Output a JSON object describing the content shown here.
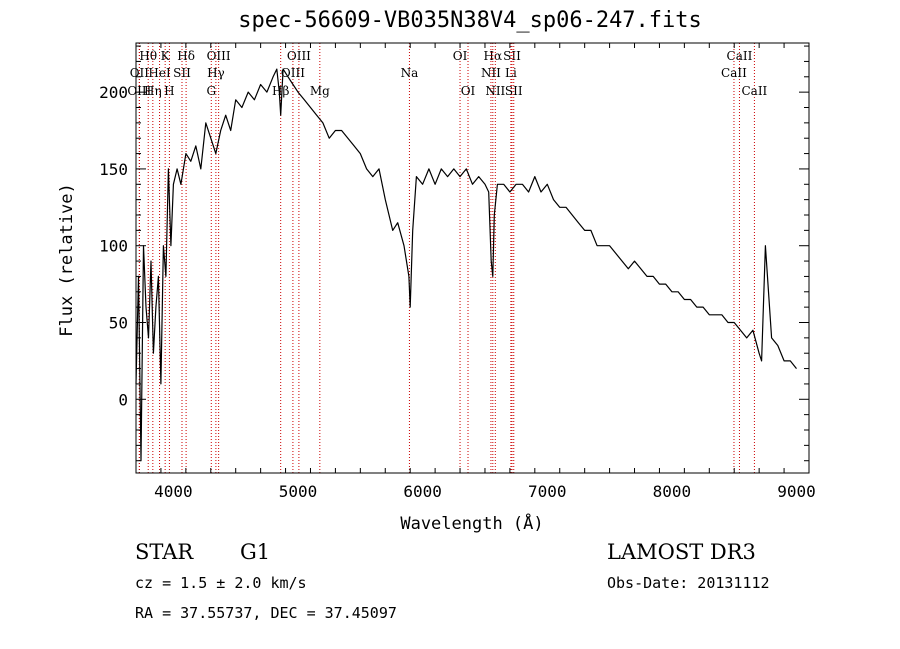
{
  "chart_data": {
    "type": "line",
    "title": "spec-56609-VB035N38V4_sp06-247.fits",
    "xlabel": "Wavelength (Å)",
    "ylabel": "Flux (relative)",
    "xlim": [
      3700,
      9100
    ],
    "ylim": [
      -48,
      232
    ],
    "x_ticks": [
      4000,
      5000,
      6000,
      7000,
      8000,
      9000
    ],
    "y_ticks": [
      0,
      50,
      100,
      150,
      200
    ],
    "grid": false,
    "line_color": "#000000",
    "marker_color": "#cc0000",
    "series": [
      {
        "name": "flux",
        "x": [
          3700,
          3720,
          3740,
          3760,
          3780,
          3800,
          3820,
          3840,
          3860,
          3880,
          3900,
          3920,
          3940,
          3960,
          3980,
          4000,
          4030,
          4060,
          4100,
          4140,
          4180,
          4220,
          4260,
          4300,
          4340,
          4380,
          4420,
          4460,
          4500,
          4550,
          4600,
          4650,
          4700,
          4750,
          4800,
          4830,
          4850,
          4861,
          4880,
          4920,
          4960,
          5000,
          5050,
          5100,
          5150,
          5200,
          5250,
          5300,
          5350,
          5400,
          5450,
          5500,
          5550,
          5600,
          5650,
          5700,
          5730,
          5760,
          5800,
          5850,
          5890,
          5900,
          5920,
          5950,
          6000,
          6050,
          6100,
          6150,
          6200,
          6250,
          6300,
          6350,
          6400,
          6450,
          6500,
          6530,
          6550,
          6563,
          6575,
          6600,
          6650,
          6700,
          6750,
          6800,
          6850,
          6900,
          6950,
          7000,
          7050,
          7100,
          7150,
          7200,
          7250,
          7300,
          7350,
          7400,
          7450,
          7500,
          7550,
          7600,
          7650,
          7700,
          7750,
          7800,
          7850,
          7900,
          7950,
          8000,
          8050,
          8100,
          8150,
          8200,
          8250,
          8300,
          8350,
          8400,
          8450,
          8500,
          8550,
          8600,
          8650,
          8700,
          8720,
          8750,
          8800,
          8850,
          8900,
          8950,
          9000
        ],
        "values": [
          10,
          80,
          -40,
          100,
          60,
          40,
          90,
          30,
          60,
          80,
          10,
          100,
          80,
          150,
          100,
          140,
          150,
          140,
          160,
          155,
          165,
          150,
          180,
          170,
          160,
          175,
          185,
          175,
          195,
          190,
          200,
          195,
          205,
          200,
          210,
          215,
          200,
          185,
          215,
          210,
          205,
          200,
          195,
          190,
          185,
          180,
          170,
          175,
          175,
          170,
          165,
          160,
          150,
          145,
          150,
          130,
          120,
          110,
          115,
          100,
          80,
          60,
          110,
          145,
          140,
          150,
          140,
          150,
          145,
          150,
          145,
          150,
          140,
          145,
          140,
          135,
          90,
          80,
          120,
          140,
          140,
          135,
          140,
          140,
          135,
          145,
          135,
          140,
          130,
          125,
          125,
          120,
          115,
          110,
          110,
          100,
          100,
          100,
          95,
          90,
          85,
          90,
          85,
          80,
          80,
          75,
          75,
          70,
          70,
          65,
          65,
          60,
          60,
          55,
          55,
          55,
          50,
          50,
          45,
          40,
          45,
          30,
          25,
          100,
          40,
          35,
          25,
          25,
          20
        ]
      }
    ],
    "line_markers": [
      {
        "label": "Hθ",
        "x": 3798,
        "row": 0
      },
      {
        "label": "OII",
        "x": 3727,
        "row": 1
      },
      {
        "label": "OIII",
        "x": 3727,
        "row": 2
      },
      {
        "label": "Hη",
        "x": 3835,
        "row": 2
      },
      {
        "label": "HeI",
        "x": 3889,
        "row": 1
      },
      {
        "label": "K",
        "x": 3934,
        "row": 0
      },
      {
        "label": "H",
        "x": 3968,
        "row": 2
      },
      {
        "label": "SII",
        "x": 4069,
        "row": 1
      },
      {
        "label": "Hδ",
        "x": 4102,
        "row": 0
      },
      {
        "label": "OIII",
        "x": 4363,
        "row": 0
      },
      {
        "label": "Hγ",
        "x": 4341,
        "row": 1
      },
      {
        "label": "G",
        "x": 4304,
        "row": 2
      },
      {
        "label": "Hβ",
        "x": 4861,
        "row": 2
      },
      {
        "label": "OIII",
        "x": 5007,
        "row": 0
      },
      {
        "label": "OIII",
        "x": 4959,
        "row": 1
      },
      {
        "label": "Mg",
        "x": 5175,
        "row": 2
      },
      {
        "label": "Na",
        "x": 5894,
        "row": 1
      },
      {
        "label": "OI",
        "x": 6300,
        "row": 0
      },
      {
        "label": "OI",
        "x": 6364,
        "row": 2
      },
      {
        "label": "Hα",
        "x": 6563,
        "row": 0
      },
      {
        "label": "NII",
        "x": 6548,
        "row": 1
      },
      {
        "label": "NII",
        "x": 6583,
        "row": 2
      },
      {
        "label": "SII",
        "x": 6717,
        "row": 0
      },
      {
        "label": "Li",
        "x": 6708,
        "row": 1
      },
      {
        "label": "SII",
        "x": 6731,
        "row": 2
      },
      {
        "label": "CaII",
        "x": 8542,
        "row": 0
      },
      {
        "label": "CaII",
        "x": 8498,
        "row": 1
      },
      {
        "label": "CaII",
        "x": 8662,
        "row": 2
      }
    ]
  },
  "info": {
    "object_class": "STAR",
    "subclass": "G1",
    "cz": "cz = 1.5 ± 2.0 km/s",
    "radec": "RA =  37.55737, DEC =  37.45097",
    "survey": "LAMOST DR3",
    "obs_date": "Obs-Date: 20131112"
  }
}
